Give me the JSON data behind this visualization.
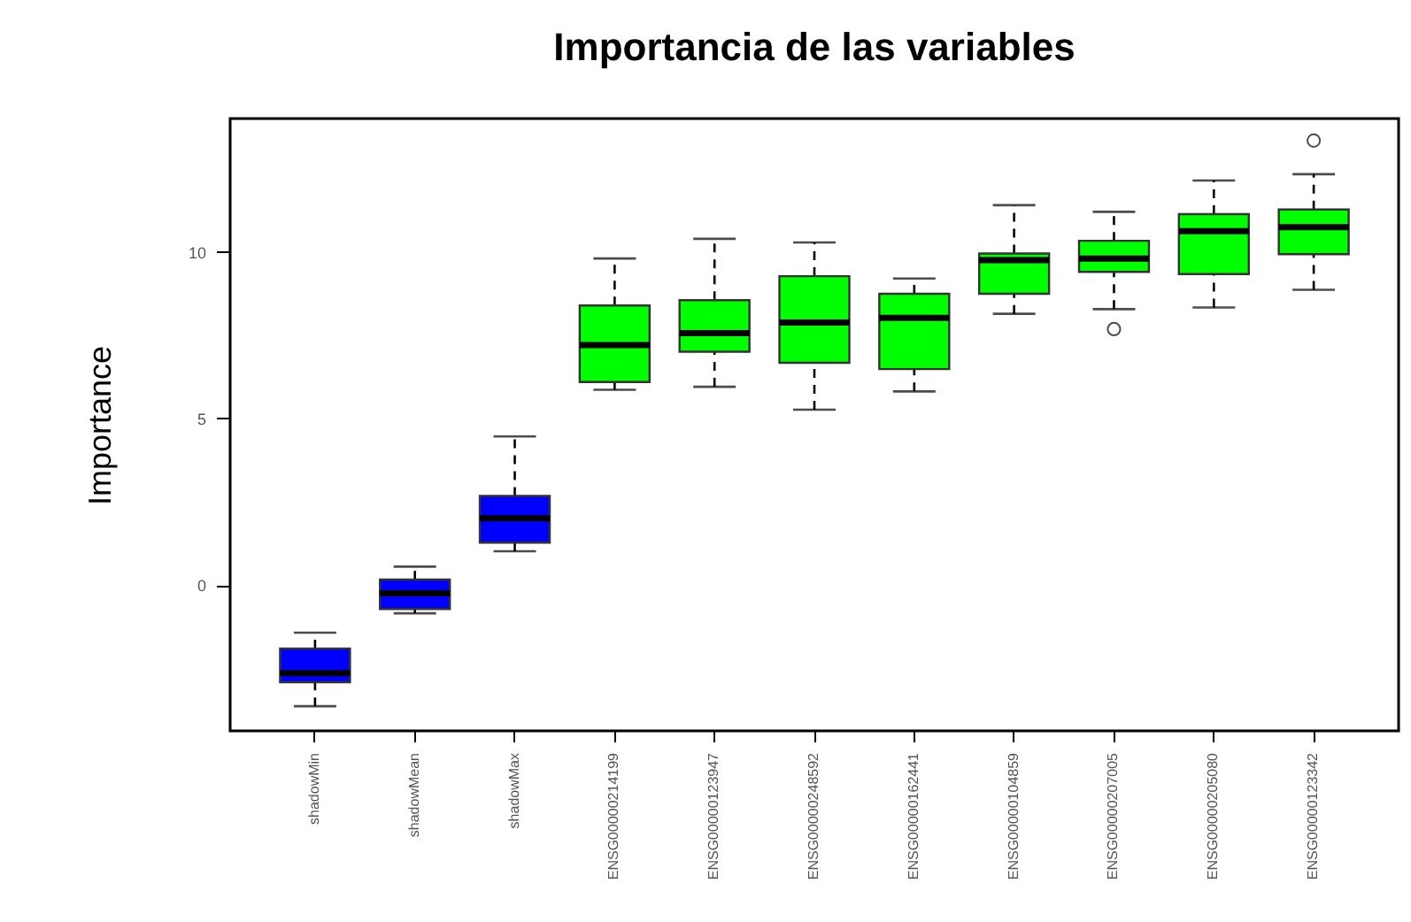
{
  "chart_data": {
    "type": "box",
    "title": "Importancia de las variables",
    "ylabel": "Importance",
    "categories": [
      "shadowMin",
      "shadowMean",
      "shadowMax",
      "ENSG00000214199",
      "ENSG00000123947",
      "ENSG00000248592",
      "ENSG00000162441",
      "ENSG00000104859",
      "ENSG00000207005",
      "ENSG00000205080",
      "ENSG00000123342"
    ],
    "colors": [
      "#0000ff",
      "#0000ff",
      "#0000ff",
      "#00ff00",
      "#00ff00",
      "#00ff00",
      "#00ff00",
      "#00ff00",
      "#00ff00",
      "#00ff00",
      "#00ff00"
    ],
    "boxes": [
      {
        "low": -3.64,
        "q1": -2.92,
        "median": -2.65,
        "q3": -1.91,
        "high": -1.43
      },
      {
        "low": -0.85,
        "q1": -0.72,
        "median": -0.25,
        "q3": 0.16,
        "high": 0.55
      },
      {
        "low": 1.01,
        "q1": 1.27,
        "median": 2.0,
        "q3": 2.67,
        "high": 4.46
      },
      {
        "low": 5.86,
        "q1": 6.09,
        "median": 7.2,
        "q3": 8.39,
        "high": 9.8
      },
      {
        "low": 5.95,
        "q1": 7.0,
        "median": 7.56,
        "q3": 8.55,
        "high": 10.39
      },
      {
        "low": 5.26,
        "q1": 6.67,
        "median": 7.88,
        "q3": 9.27,
        "high": 10.28
      },
      {
        "low": 5.81,
        "q1": 6.48,
        "median": 8.02,
        "q3": 8.74,
        "high": 9.2
      },
      {
        "low": 8.14,
        "q1": 8.74,
        "median": 9.75,
        "q3": 9.95,
        "high": 11.4
      },
      {
        "low": 8.28,
        "q1": 9.4,
        "median": 9.8,
        "q3": 10.33,
        "high": 11.2,
        "outliers": [
          7.68
        ]
      },
      {
        "low": 8.33,
        "q1": 9.33,
        "median": 10.62,
        "q3": 11.13,
        "high": 12.14
      },
      {
        "low": 8.86,
        "q1": 9.93,
        "median": 10.74,
        "q3": 11.27,
        "high": 12.33,
        "outliers": [
          13.34
        ]
      }
    ],
    "ylim": [
      -4.38,
      14.0
    ],
    "yticks": [
      0,
      5,
      10
    ]
  }
}
